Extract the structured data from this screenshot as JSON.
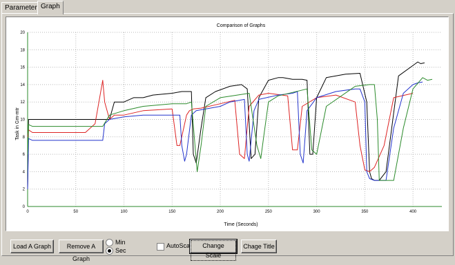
{
  "tabs": [
    {
      "label": "Parameters",
      "active": false
    },
    {
      "label": "Graph",
      "active": true
    }
  ],
  "chart_data": {
    "type": "line",
    "title": "Comparison of Graphs",
    "xlabel": "Time (Seconds)",
    "ylabel": "Task in Gm-mtr",
    "xlim": [
      0,
      430
    ],
    "ylim": [
      0,
      20
    ],
    "xticks": [
      0,
      50,
      100,
      150,
      200,
      250,
      300,
      350,
      400
    ],
    "yticks": [
      0,
      2,
      4,
      6,
      8,
      10,
      12,
      14,
      16,
      18,
      20
    ],
    "grid": true,
    "series": [
      {
        "color": "#000000",
        "x": [
          0,
          1,
          5,
          60,
          78,
          85,
          90,
          100,
          110,
          120,
          130,
          150,
          160,
          170,
          172,
          175,
          180,
          185,
          195,
          210,
          222,
          228,
          232,
          236,
          240,
          250,
          260,
          265,
          275,
          285,
          290,
          293,
          296,
          300,
          310,
          330,
          345,
          352,
          355,
          357,
          360,
          365,
          372,
          385,
          400,
          405,
          408,
          412
        ],
        "y": [
          2,
          10,
          10,
          10,
          10,
          10,
          12,
          12,
          12.5,
          12.5,
          12.8,
          13,
          13.2,
          13.2,
          6,
          5,
          9,
          12.5,
          13.2,
          13.8,
          14,
          13.5,
          5.5,
          6,
          12.5,
          14.5,
          14.8,
          14.8,
          14.6,
          14.6,
          14.5,
          6,
          6,
          12.5,
          14.8,
          15.2,
          15.3,
          12,
          4,
          3.2,
          3,
          3,
          4,
          15,
          16.2,
          16.6,
          16.4,
          16.5
        ]
      },
      {
        "color": "#dd2222",
        "x": [
          0,
          1,
          5,
          60,
          70,
          78,
          80,
          85,
          90,
          100,
          120,
          150,
          155,
          158,
          165,
          168,
          172,
          180,
          200,
          215,
          220,
          225,
          230,
          240,
          250,
          270,
          275,
          280,
          285,
          300,
          320,
          340,
          345,
          350,
          355,
          360,
          370,
          380,
          400
        ],
        "y": [
          8,
          8.8,
          8.5,
          8.5,
          9.5,
          14.5,
          12,
          10,
          10.5,
          10.5,
          11,
          11.2,
          7,
          7,
          10.5,
          11,
          11.2,
          11.3,
          11.8,
          12.2,
          6,
          5.5,
          11.5,
          12.8,
          13,
          12.7,
          6.5,
          6.5,
          11.5,
          12.5,
          12.8,
          12,
          7,
          4.2,
          4,
          4.5,
          7,
          12.5,
          13
        ]
      },
      {
        "color": "#2233cc",
        "x": [
          0,
          1,
          5,
          30,
          60,
          78,
          80,
          85,
          100,
          120,
          150,
          158,
          160,
          163,
          165,
          170,
          175,
          200,
          210,
          225,
          228,
          230,
          235,
          240,
          260,
          275,
          280,
          283,
          286,
          290,
          300,
          320,
          340,
          345,
          350,
          352,
          355,
          360,
          372,
          380,
          390,
          400,
          405,
          410
        ],
        "y": [
          2,
          7.8,
          7.6,
          7.6,
          7.6,
          7.6,
          9.5,
          10,
          10.3,
          10.5,
          10.5,
          10.5,
          7,
          5.2,
          6,
          10.5,
          11,
          11.5,
          12,
          12.3,
          6,
          5.2,
          11,
          12.3,
          12.8,
          13,
          13.2,
          6,
          5,
          11,
          12.5,
          13.2,
          13.5,
          13.5,
          12,
          4,
          3.2,
          3,
          3,
          9,
          13,
          14,
          14.2,
          14.3
        ]
      },
      {
        "color": "#2a8a2a",
        "x": [
          0,
          1,
          5,
          60,
          78,
          85,
          100,
          120,
          150,
          165,
          170,
          173,
          176,
          180,
          185,
          200,
          230,
          238,
          242,
          245,
          250,
          260,
          290,
          295,
          300,
          310,
          340,
          355,
          360,
          363,
          365,
          370,
          380,
          390,
          400,
          410,
          415,
          420
        ],
        "y": [
          6,
          9.4,
          9.2,
          9.2,
          9.2,
          10.5,
          11,
          11.5,
          11.8,
          11.8,
          12,
          8,
          4,
          7,
          11.5,
          12.5,
          13,
          7,
          5.5,
          8,
          12,
          12.7,
          13.5,
          6.5,
          6,
          11.5,
          13.8,
          14,
          14,
          10,
          3,
          3,
          3,
          9,
          13.5,
          14.8,
          14.5,
          14.6
        ]
      }
    ]
  },
  "controls": {
    "load_graph": "Load A Graph",
    "remove_graph": "Remove A Graph",
    "radio_min": "Min",
    "radio_sec": "Sec",
    "radio_selected": "Sec",
    "autoscale_label": "AutoScale",
    "autoscale_checked": false,
    "change_scale": "Change Scale",
    "change_title": "Chage Title"
  }
}
